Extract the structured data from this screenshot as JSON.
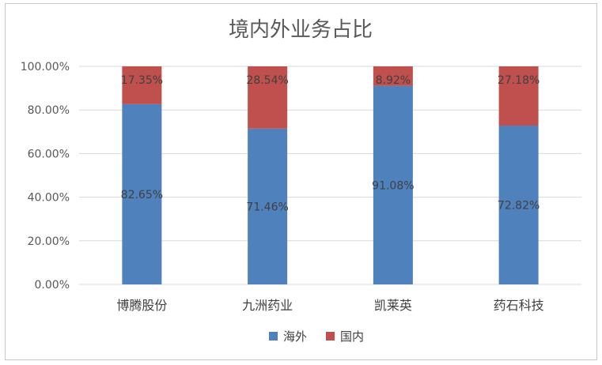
{
  "chart_data": {
    "type": "bar",
    "stacked": true,
    "title": "境内外业务占比",
    "categories": [
      "博腾股份",
      "九洲药业",
      "凯莱英",
      "药石科技"
    ],
    "series": [
      {
        "name": "海外",
        "color": "#4F81BD",
        "values": [
          82.65,
          71.46,
          91.08,
          72.82
        ],
        "labels": [
          "82.65%",
          "71.46%",
          "91.08%",
          "72.82%"
        ]
      },
      {
        "name": "国内",
        "color": "#C0504D",
        "values": [
          17.35,
          28.54,
          8.92,
          27.18
        ],
        "labels": [
          "17.35%",
          "28.54%",
          "8.92%",
          "27.18%"
        ]
      }
    ],
    "yticks": [
      "0.00%",
      "20.00%",
      "40.00%",
      "60.00%",
      "80.00%",
      "100.00%"
    ],
    "ylim": [
      0,
      100
    ],
    "grid": true,
    "legend_position": "bottom"
  }
}
